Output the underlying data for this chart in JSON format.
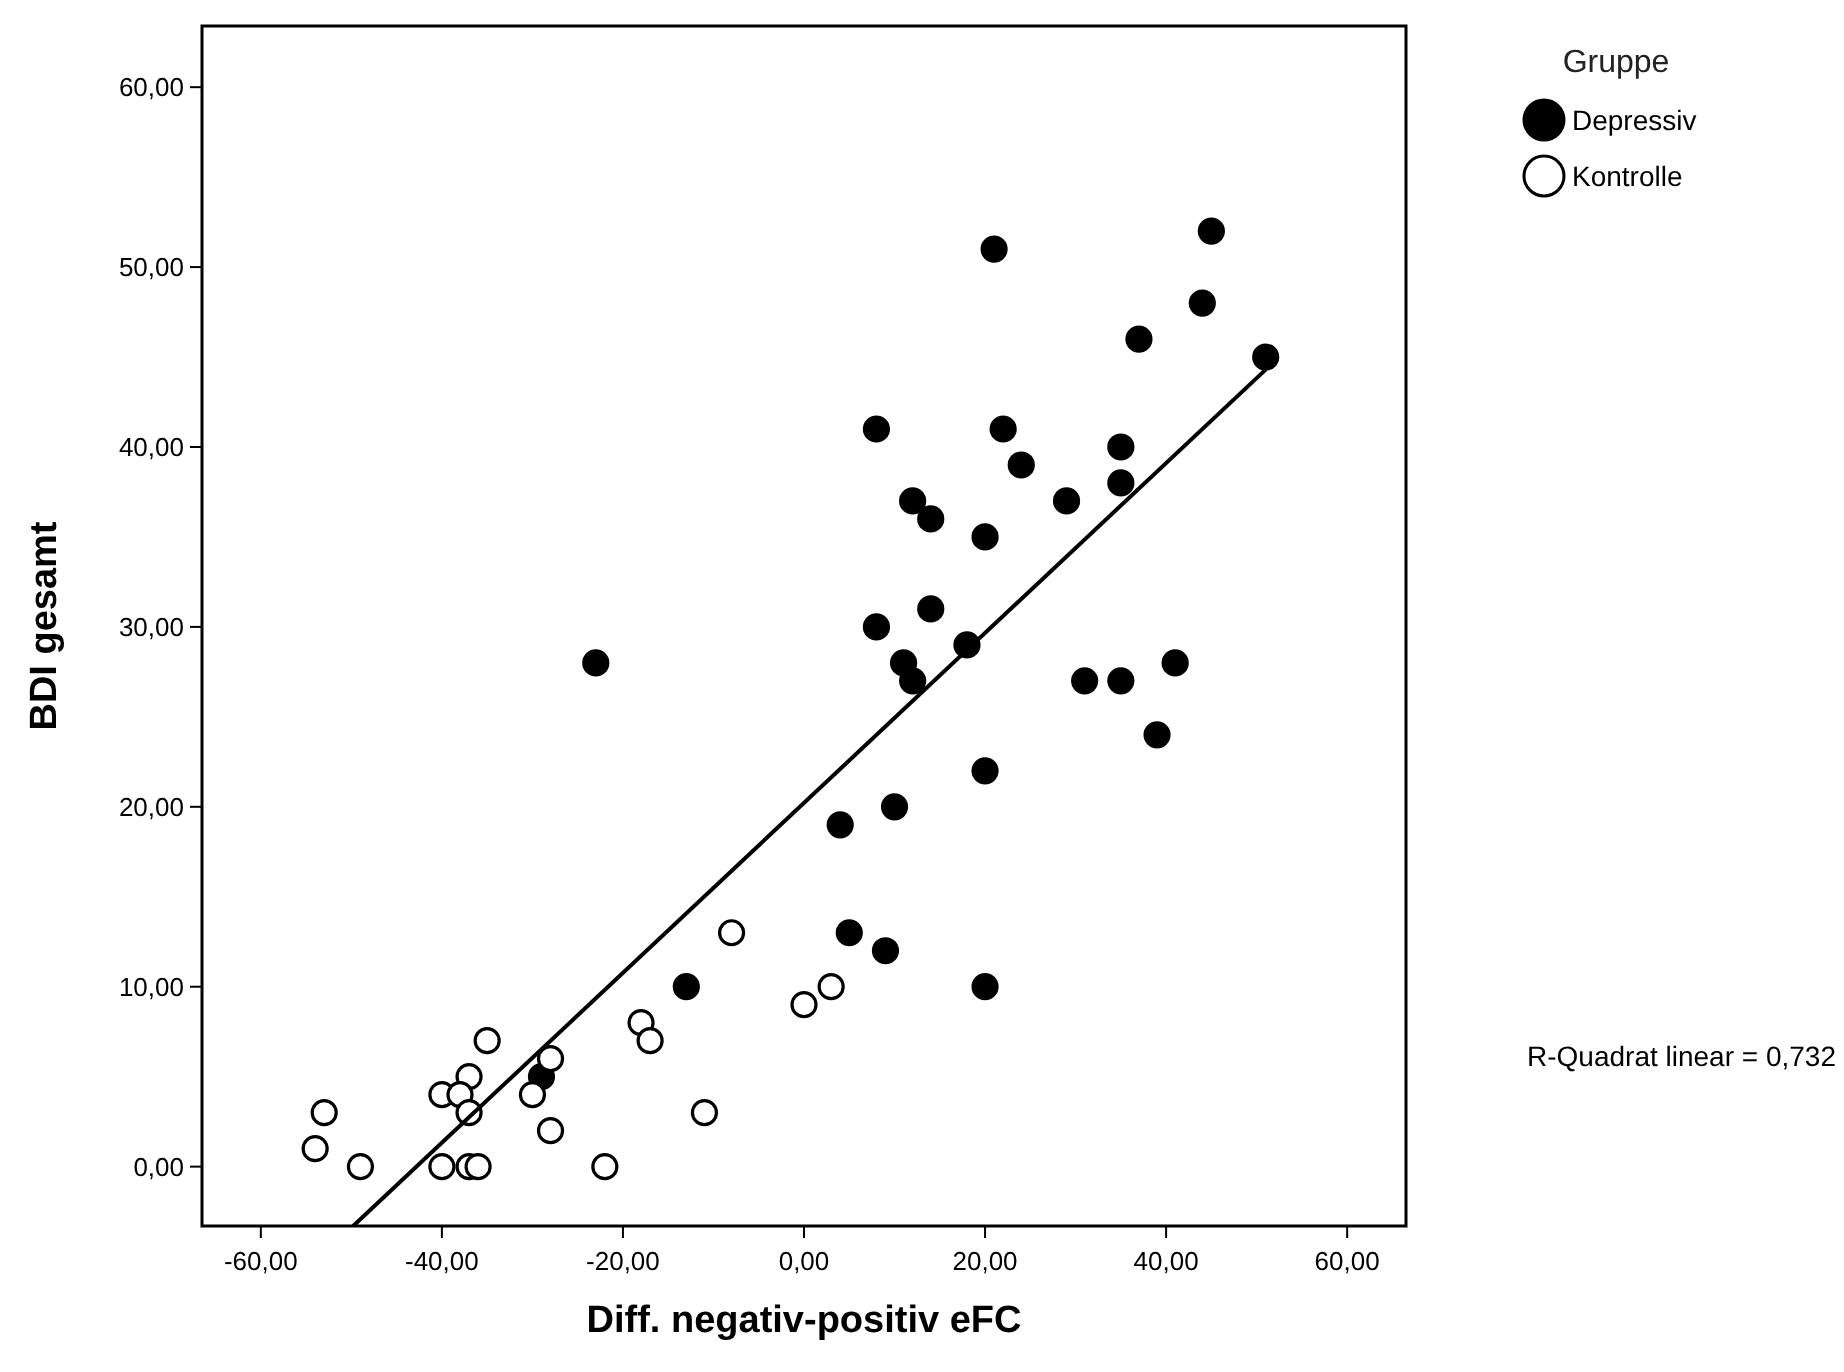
{
  "chart_data": {
    "type": "scatter",
    "xlabel": "Diff. negativ-positiv  eFC",
    "ylabel": "BDI gesamt",
    "legend_title": "Gruppe",
    "legend": "top right",
    "marker": "circle",
    "grid": false,
    "xlim": [
      -66.5,
      66.5
    ],
    "ylim": [
      -3.3,
      63.4
    ],
    "xticks": [
      {
        "value": -60,
        "label": "-60,00"
      },
      {
        "value": -40,
        "label": "-40,00"
      },
      {
        "value": -20,
        "label": "-20,00"
      },
      {
        "value": 0,
        "label": "0,00"
      },
      {
        "value": 20,
        "label": "20,00"
      },
      {
        "value": 40,
        "label": "40,00"
      },
      {
        "value": 60,
        "label": "60,00"
      }
    ],
    "yticks": [
      {
        "value": 0,
        "label": "0,00"
      },
      {
        "value": 10,
        "label": "10,00"
      },
      {
        "value": 20,
        "label": "20,00"
      },
      {
        "value": 30,
        "label": "30,00"
      },
      {
        "value": 40,
        "label": "40,00"
      },
      {
        "value": 50,
        "label": "50,00"
      },
      {
        "value": 60,
        "label": "60,00"
      }
    ],
    "annotations": [
      "R-Quadrat linear = 0,732"
    ],
    "series": [
      {
        "name": "Depressiv",
        "color": "#000000",
        "x": [
          21,
          45,
          44,
          37,
          51,
          8,
          22,
          35,
          24,
          35,
          12,
          29,
          14,
          20,
          14,
          8,
          18,
          11,
          12,
          -23,
          31,
          35,
          41,
          39,
          20,
          10,
          4,
          5,
          9,
          -13,
          20,
          -29
        ],
        "values": [
          51,
          52,
          48,
          46,
          45,
          41,
          41,
          40,
          39,
          38,
          37,
          37,
          36,
          35,
          31,
          30,
          29,
          28,
          27,
          28,
          27,
          27,
          28,
          24,
          22,
          20,
          19,
          13,
          12,
          10,
          10,
          5
        ]
      },
      {
        "name": "Kontrolle",
        "color": "#ffffff",
        "x": [
          -8,
          3,
          0,
          -18,
          -17,
          -35,
          -28,
          -37,
          -40,
          -38,
          -30,
          -53,
          -37,
          -11,
          -54,
          -28,
          -49,
          -40,
          -37,
          -36,
          -22
        ],
        "values": [
          13,
          10,
          9,
          8,
          7,
          7,
          6,
          5,
          4,
          4,
          4,
          3,
          3,
          3,
          1,
          2,
          0,
          0,
          0,
          0,
          0
        ]
      },
      {
        "type": "line",
        "color": "#000000",
        "marker": "none",
        "x": [
          -49.8,
          51
        ],
        "values": [
          -3.3,
          44.3
        ]
      }
    ]
  }
}
